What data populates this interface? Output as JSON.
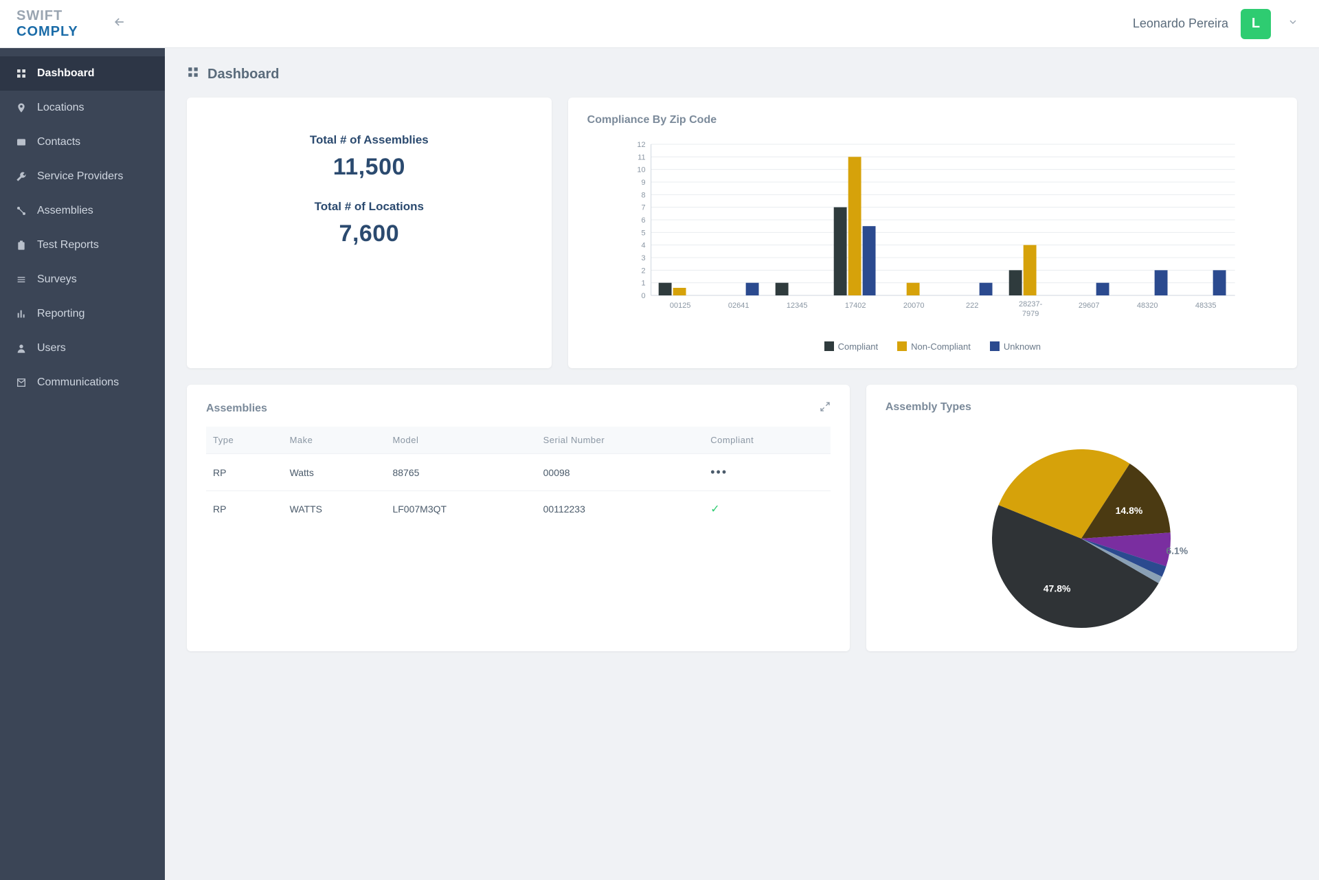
{
  "brand": {
    "line1": "SWIFT",
    "line2": "COMPLY"
  },
  "user": {
    "name": "Leonardo Pereira",
    "initial": "L"
  },
  "sidebar": {
    "items": [
      {
        "label": "Dashboard",
        "icon": "grid",
        "active": true
      },
      {
        "label": "Locations",
        "icon": "pin",
        "active": false
      },
      {
        "label": "Contacts",
        "icon": "id",
        "active": false
      },
      {
        "label": "Service Providers",
        "icon": "wrench",
        "active": false
      },
      {
        "label": "Assemblies",
        "icon": "flow",
        "active": false
      },
      {
        "label": "Test Reports",
        "icon": "clip",
        "active": false
      },
      {
        "label": "Surveys",
        "icon": "list",
        "active": false
      },
      {
        "label": "Reporting",
        "icon": "bars",
        "active": false
      },
      {
        "label": "Users",
        "icon": "user",
        "active": false
      },
      {
        "label": "Communications",
        "icon": "mail",
        "active": false
      }
    ]
  },
  "page": {
    "title": "Dashboard"
  },
  "stats": {
    "assemblies_label": "Total # of Assemblies",
    "assemblies_value": "11,500",
    "locations_label": "Total # of Locations",
    "locations_value": "7,600"
  },
  "zip_chart": {
    "title": "Compliance By Zip Code",
    "type": "bar-grouped",
    "categories": [
      "00125",
      "02641",
      "12345",
      "17402",
      "20070",
      "222",
      "28237-7979",
      "29607",
      "48320",
      "48335"
    ],
    "series": [
      {
        "name": "Compliant",
        "color": "#2f3b3d",
        "values": [
          1.0,
          0.0,
          1.0,
          7.0,
          0.0,
          0.0,
          2.0,
          0.0,
          0.0,
          0.0
        ]
      },
      {
        "name": "Non-Compliant",
        "color": "#d6a20a",
        "values": [
          0.6,
          0.0,
          0.0,
          11.0,
          1.0,
          0.0,
          4.0,
          0.0,
          0.0,
          0.0
        ]
      },
      {
        "name": "Unknown",
        "color": "#2b4a8f",
        "values": [
          0.0,
          1.0,
          0.0,
          5.5,
          0.0,
          1.0,
          0.0,
          1.0,
          2.0,
          2.0
        ]
      }
    ],
    "ylim": [
      0,
      12
    ],
    "ytick_step": 1,
    "background_color": "#ffffff",
    "grid_color": "#e8ecef",
    "axis_color": "#cfd6df",
    "label_color": "#8a96a3",
    "label_fontsize": 11,
    "bar_group_width": 0.74
  },
  "assemblies_table": {
    "title": "Assemblies",
    "columns": [
      "Type",
      "Make",
      "Model",
      "Serial Number",
      "Compliant"
    ],
    "rows": [
      {
        "cells": [
          "RP",
          "Watts",
          "88765",
          "00098"
        ],
        "status": "dots"
      },
      {
        "cells": [
          "RP",
          "WATTS",
          "LF007M3QT",
          "00112233"
        ],
        "status": "check"
      }
    ]
  },
  "assembly_types": {
    "title": "Assembly Types",
    "type": "pie",
    "slices": [
      {
        "label": "47.8%",
        "value": 47.8,
        "color": "#2f3336",
        "show_label": true
      },
      {
        "label": "",
        "value": 28.0,
        "color": "#d6a20a",
        "show_label": false
      },
      {
        "label": "14.8%",
        "value": 14.8,
        "color": "#4b3a12",
        "show_label": true
      },
      {
        "label": "6.1%",
        "value": 6.1,
        "color": "#7a2ea0",
        "show_label": true
      },
      {
        "label": "",
        "value": 2.0,
        "color": "#2b4a8f",
        "show_label": false
      },
      {
        "label": "",
        "value": 1.3,
        "color": "#8aa0b5",
        "show_label": false
      }
    ],
    "label_color": "#ffffff",
    "outer_label_color": "#6b7a8a",
    "label_fontsize": 14,
    "start_angle_deg": 30
  }
}
